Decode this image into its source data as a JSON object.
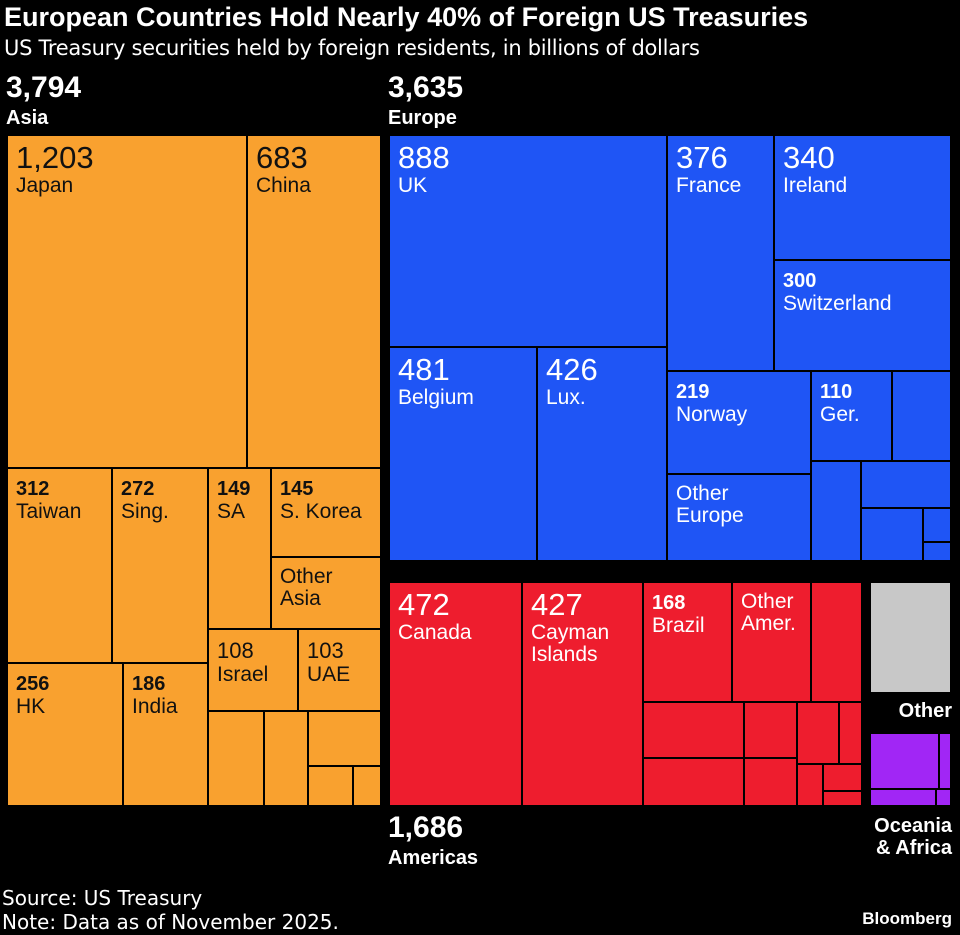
{
  "title": "European Countries Hold Nearly 40% of Foreign US Treasuries",
  "subtitle": "US Treasury securities held by foreign residents, in billions of dollars",
  "source": "Source: US Treasury",
  "note": "Note: Data as of November 2025.",
  "brand": "Bloomberg",
  "chart_data": {
    "type": "treemap",
    "colors": {
      "Asia": "#f9a12f",
      "Europe": "#1f55f5",
      "Americas": "#ee1d2e",
      "Other": "#c8c8c8",
      "Oceania & Africa": "#a126f5"
    },
    "regions": [
      {
        "name": "Asia",
        "total": "3,794",
        "items": [
          {
            "label": "Japan",
            "value": "1,203"
          },
          {
            "label": "China",
            "value": "683"
          },
          {
            "label": "Taiwan",
            "value": "312"
          },
          {
            "label": "Sing.",
            "value": "272"
          },
          {
            "label": "SA",
            "value": "149"
          },
          {
            "label": "S. Korea",
            "value": "145"
          },
          {
            "label": "Other\nAsia",
            "value": ""
          },
          {
            "label": "Israel",
            "value": "108"
          },
          {
            "label": "UAE",
            "value": "103"
          },
          {
            "label": "HK",
            "value": "256"
          },
          {
            "label": "India",
            "value": "186"
          }
        ]
      },
      {
        "name": "Europe",
        "total": "3,635",
        "items": [
          {
            "label": "UK",
            "value": "888"
          },
          {
            "label": "France",
            "value": "376"
          },
          {
            "label": "Ireland",
            "value": "340"
          },
          {
            "label": "Switzerland",
            "value": "300"
          },
          {
            "label": "Belgium",
            "value": "481"
          },
          {
            "label": "Lux.",
            "value": "426"
          },
          {
            "label": "Norway",
            "value": "219"
          },
          {
            "label": "Other\nEurope",
            "value": ""
          },
          {
            "label": "Ger.",
            "value": "110"
          }
        ]
      },
      {
        "name": "Americas",
        "total": "1,686",
        "items": [
          {
            "label": "Canada",
            "value": "472"
          },
          {
            "label": "Cayman\nIslands",
            "value": "427"
          },
          {
            "label": "Brazil",
            "value": "168"
          },
          {
            "label": "Other\nAmer.",
            "value": ""
          }
        ]
      },
      {
        "name": "Other",
        "total": "",
        "items": []
      },
      {
        "name": "Oceania\n& Africa",
        "total": "",
        "items": []
      }
    ]
  }
}
